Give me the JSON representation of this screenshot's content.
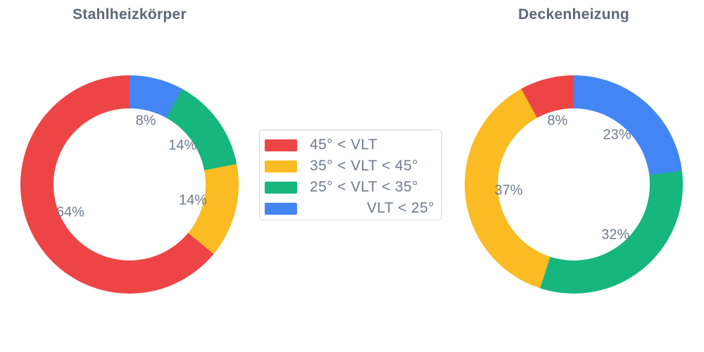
{
  "figure": {
    "background": "#ffffff"
  },
  "colors": {
    "red": "#ED4545",
    "yellow": "#FBBC23",
    "green": "#17B67F",
    "blue": "#4485F4",
    "title_text": "#5F6775",
    "label_text": "#6F7B8D",
    "legend_border": "#D6D6D6"
  },
  "legend": {
    "position": "center",
    "items": [
      {
        "label": "45° < VLT",
        "color": "#ED4545"
      },
      {
        "label": "35° < VLT < 45°",
        "color": "#FBBC23"
      },
      {
        "label": "25° < VLT < 35°",
        "color": "#17B67F"
      },
      {
        "label": "VLT < 25°",
        "color": "#4485F4"
      }
    ]
  },
  "chart_data": [
    {
      "type": "pie",
      "subtype": "donut",
      "title": "Stahlheizkörper",
      "hole": 0.7,
      "direction": "counterclockwise",
      "start_angle": "top",
      "unit": "percent",
      "categories": [
        "45° < VLT",
        "35° < VLT < 45°",
        "25° < VLT < 35°",
        "VLT < 25°"
      ],
      "values": [
        64,
        14,
        14,
        8
      ],
      "slice_labels": [
        "64%",
        "14%",
        "14%",
        "8%"
      ],
      "slice_colors": [
        "#ED4545",
        "#FBBC23",
        "#17B67F",
        "#4485F4"
      ]
    },
    {
      "type": "pie",
      "subtype": "donut",
      "title": "Deckenheizung",
      "hole": 0.7,
      "direction": "counterclockwise",
      "start_angle": "top",
      "unit": "percent",
      "categories": [
        "45° < VLT",
        "35° < VLT < 45°",
        "25° < VLT < 35°",
        "VLT < 25°"
      ],
      "values": [
        8,
        37,
        32,
        23
      ],
      "slice_labels": [
        "8%",
        "37%",
        "32%",
        "23%"
      ],
      "slice_colors": [
        "#ED4545",
        "#FBBC23",
        "#17B67F",
        "#4485F4"
      ]
    }
  ]
}
